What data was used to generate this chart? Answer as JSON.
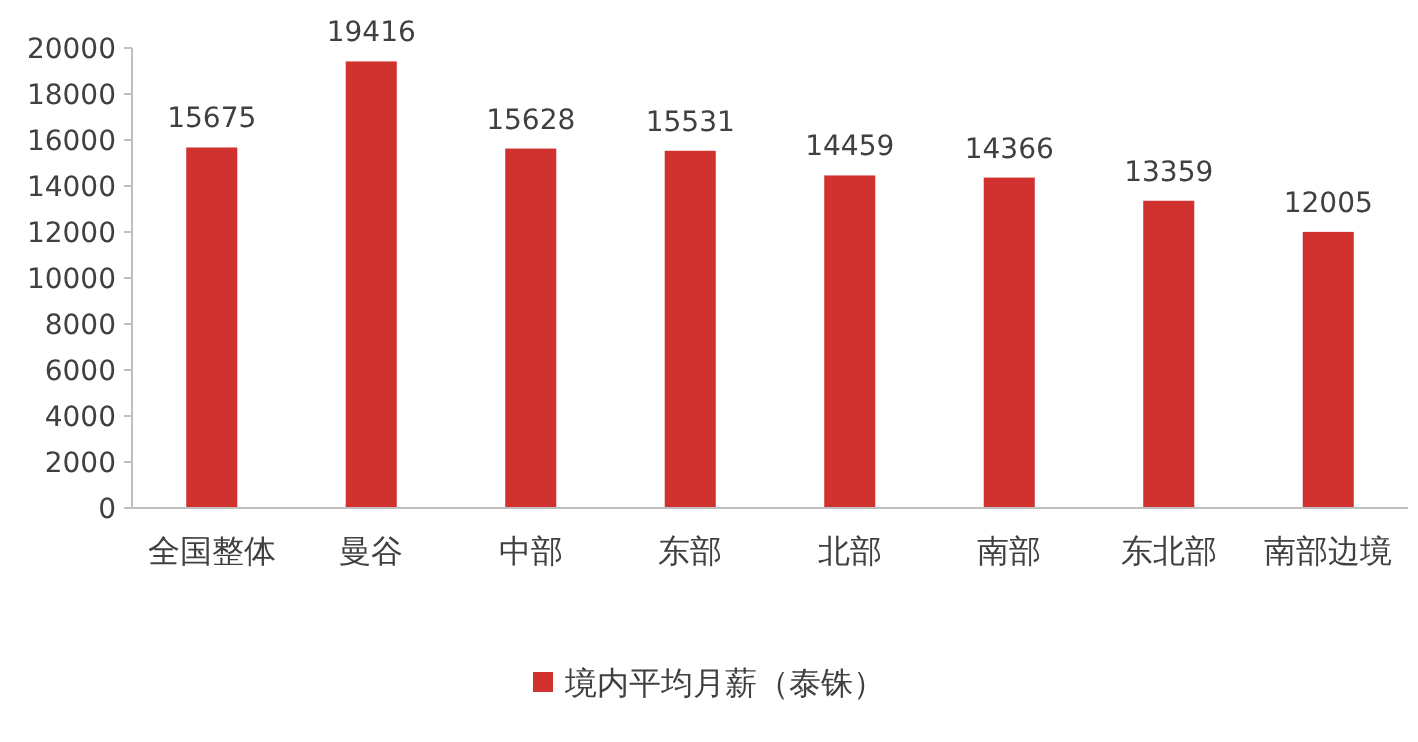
{
  "chart_data": {
    "type": "bar",
    "categories": [
      "全国整体",
      "曼谷",
      "中部",
      "东部",
      "北部",
      "南部",
      "东北部",
      "南部边境"
    ],
    "series": [
      {
        "name": "境内平均月薪（泰铢）",
        "color": "#d03230",
        "values": [
          15675,
          19416,
          15628,
          15531,
          14459,
          14366,
          13359,
          12005
        ]
      }
    ],
    "ylim": [
      0,
      20000
    ],
    "yticks": [
      0,
      2000,
      4000,
      6000,
      8000,
      10000,
      12000,
      14000,
      16000,
      18000,
      20000
    ],
    "data_labels": true,
    "legend": "bottom",
    "grid": false
  }
}
